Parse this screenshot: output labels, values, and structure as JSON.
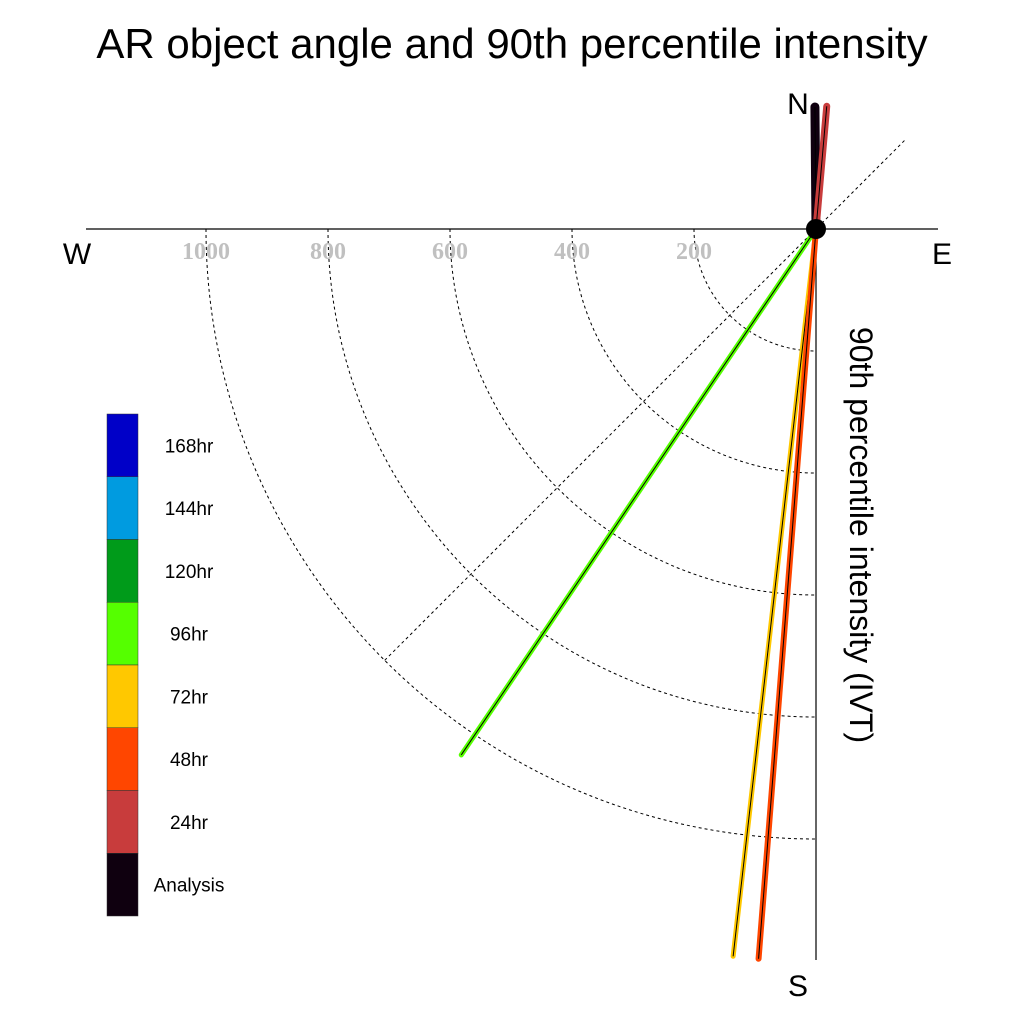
{
  "chart_data": {
    "type": "polar-vector",
    "title": "AR object angle and 90th percentile intensity",
    "ylabel": "90th percentile intensity (IVT)",
    "compass": {
      "north": "N",
      "south": "S",
      "east": "E",
      "west": "W"
    },
    "radial_ticks": [
      {
        "value": 200,
        "label": "200"
      },
      {
        "value": 400,
        "label": "400"
      },
      {
        "value": 600,
        "label": "600"
      },
      {
        "value": 800,
        "label": "800"
      },
      {
        "value": 1000,
        "label": "1000"
      }
    ],
    "rlim": [
      0,
      1200
    ],
    "grid": true,
    "legend_position": "left",
    "legend": [
      {
        "label": "168hr",
        "color": "#0000c8"
      },
      {
        "label": "144hr",
        "color": "#009be0"
      },
      {
        "label": "120hr",
        "color": "#009b1a"
      },
      {
        "label": "96hr",
        "color": "#55ff00"
      },
      {
        "label": "72hr",
        "color": "#ffc800"
      },
      {
        "label": "48hr",
        "color": "#ff4600"
      },
      {
        "label": "24hr",
        "color": "#c83c3c"
      },
      {
        "label": "Analysis",
        "color": "#0f000f"
      }
    ],
    "series": [
      {
        "name": "Analysis",
        "color": "#0f000f",
        "angle_deg": -0.5,
        "intensity": 200,
        "width": 9
      },
      {
        "name": "24hr",
        "color": "#c83c3c",
        "angle_deg": 5,
        "intensity": 202,
        "width": 7
      },
      {
        "name": "96hr",
        "color": "#55ff00",
        "angle_deg": 214,
        "intensity": 1040,
        "width": 5
      },
      {
        "name": "72hr",
        "color": "#ffc800",
        "angle_deg": 186.5,
        "intensity": 1200,
        "width": 5
      },
      {
        "name": "48hr",
        "color": "#ff4600",
        "angle_deg": 184.5,
        "intensity": 1200,
        "width": 6
      }
    ]
  }
}
